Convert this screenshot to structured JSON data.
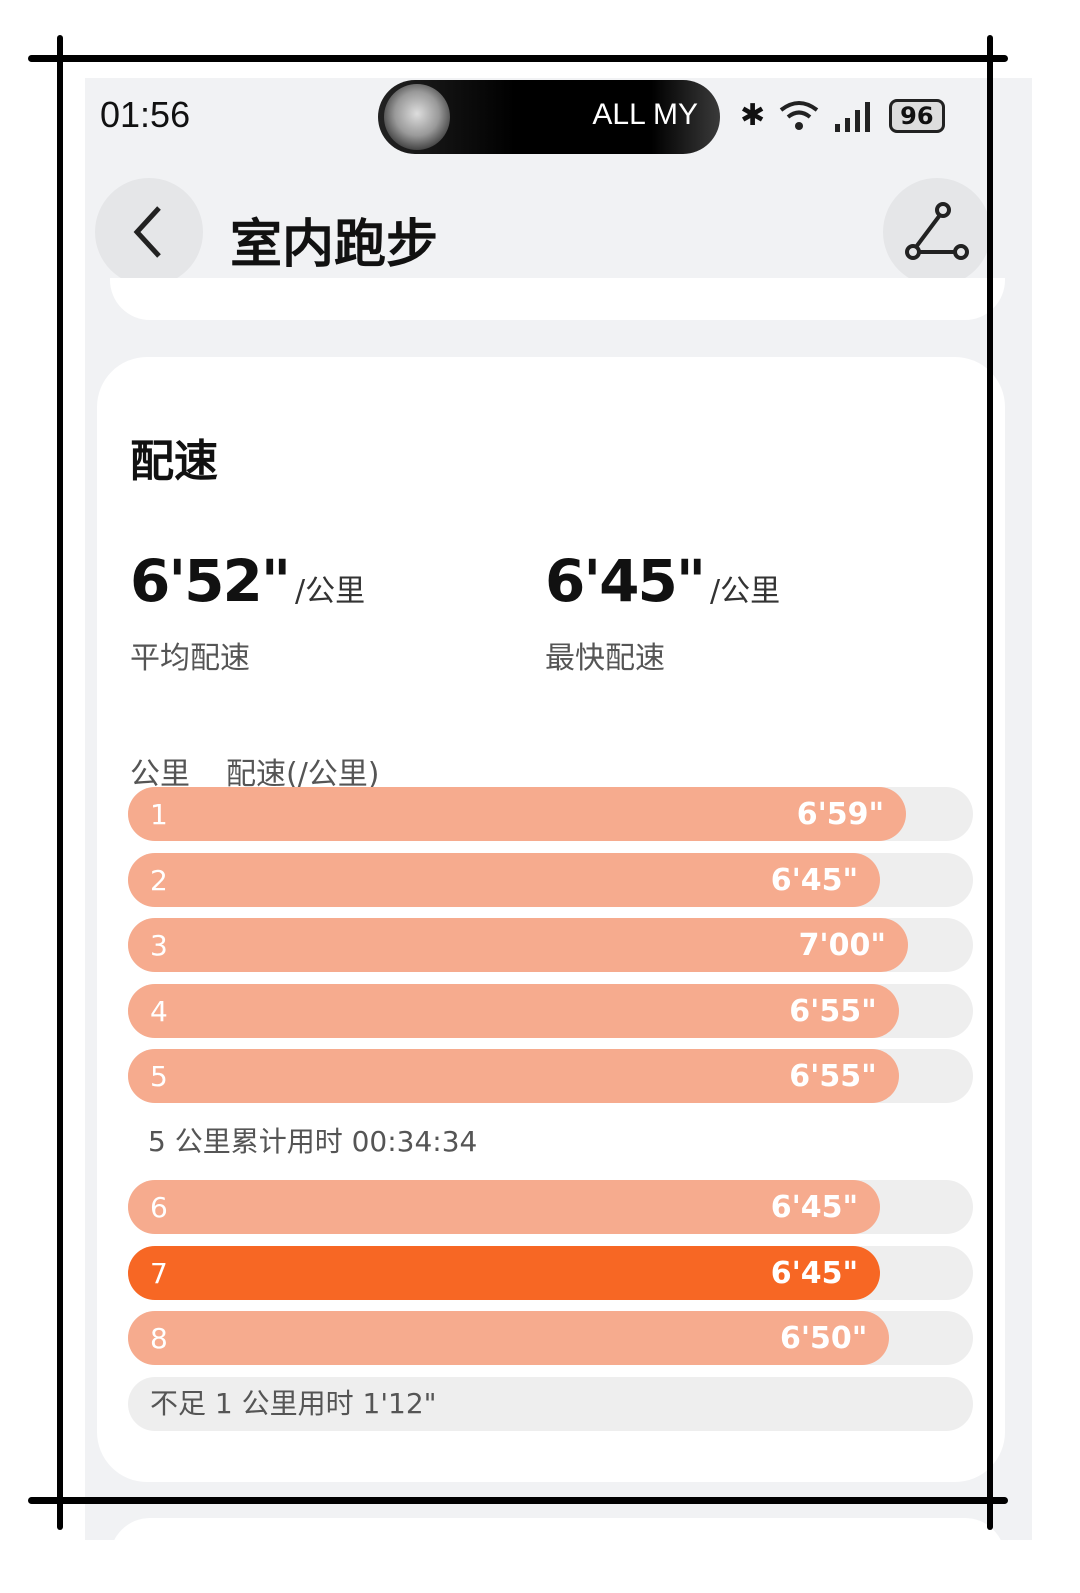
{
  "status_bar": {
    "time": "01:56",
    "now_playing": "ALL MY",
    "battery": "96"
  },
  "header": {
    "title": "室内跑步",
    "back_icon": "chevron-left-icon",
    "share_icon": "route-share-icon"
  },
  "pace_card": {
    "heading": "配速",
    "average": {
      "value": "6'52\"",
      "unit": "/公里",
      "label": "平均配速"
    },
    "fastest": {
      "value": "6'45\"",
      "unit": "/公里",
      "label": "最快配速"
    },
    "columns": [
      "公里",
      "配速(/公里)"
    ],
    "splits": [
      {
        "km": "1",
        "pace": "6'59\"",
        "highlight": false
      },
      {
        "km": "2",
        "pace": "6'45\"",
        "highlight": false
      },
      {
        "km": "3",
        "pace": "7'00\"",
        "highlight": false
      },
      {
        "km": "4",
        "pace": "6'55\"",
        "highlight": false
      },
      {
        "km": "5",
        "pace": "6'55\"",
        "highlight": false
      },
      {
        "km": "6",
        "pace": "6'45\"",
        "highlight": false
      },
      {
        "km": "7",
        "pace": "6'45\"",
        "highlight": true
      },
      {
        "km": "8",
        "pace": "6'50\"",
        "highlight": false
      }
    ],
    "subtotal_after_km": 5,
    "subtotal_text": "5 公里累计用时 00:34:34",
    "remainder_text": "不足 1 公里用时 1'12\""
  },
  "colors": {
    "bar": "#f6ab8e",
    "bar_highlight": "#f76724",
    "track": "#eeeeee",
    "background": "#f1f2f4"
  }
}
